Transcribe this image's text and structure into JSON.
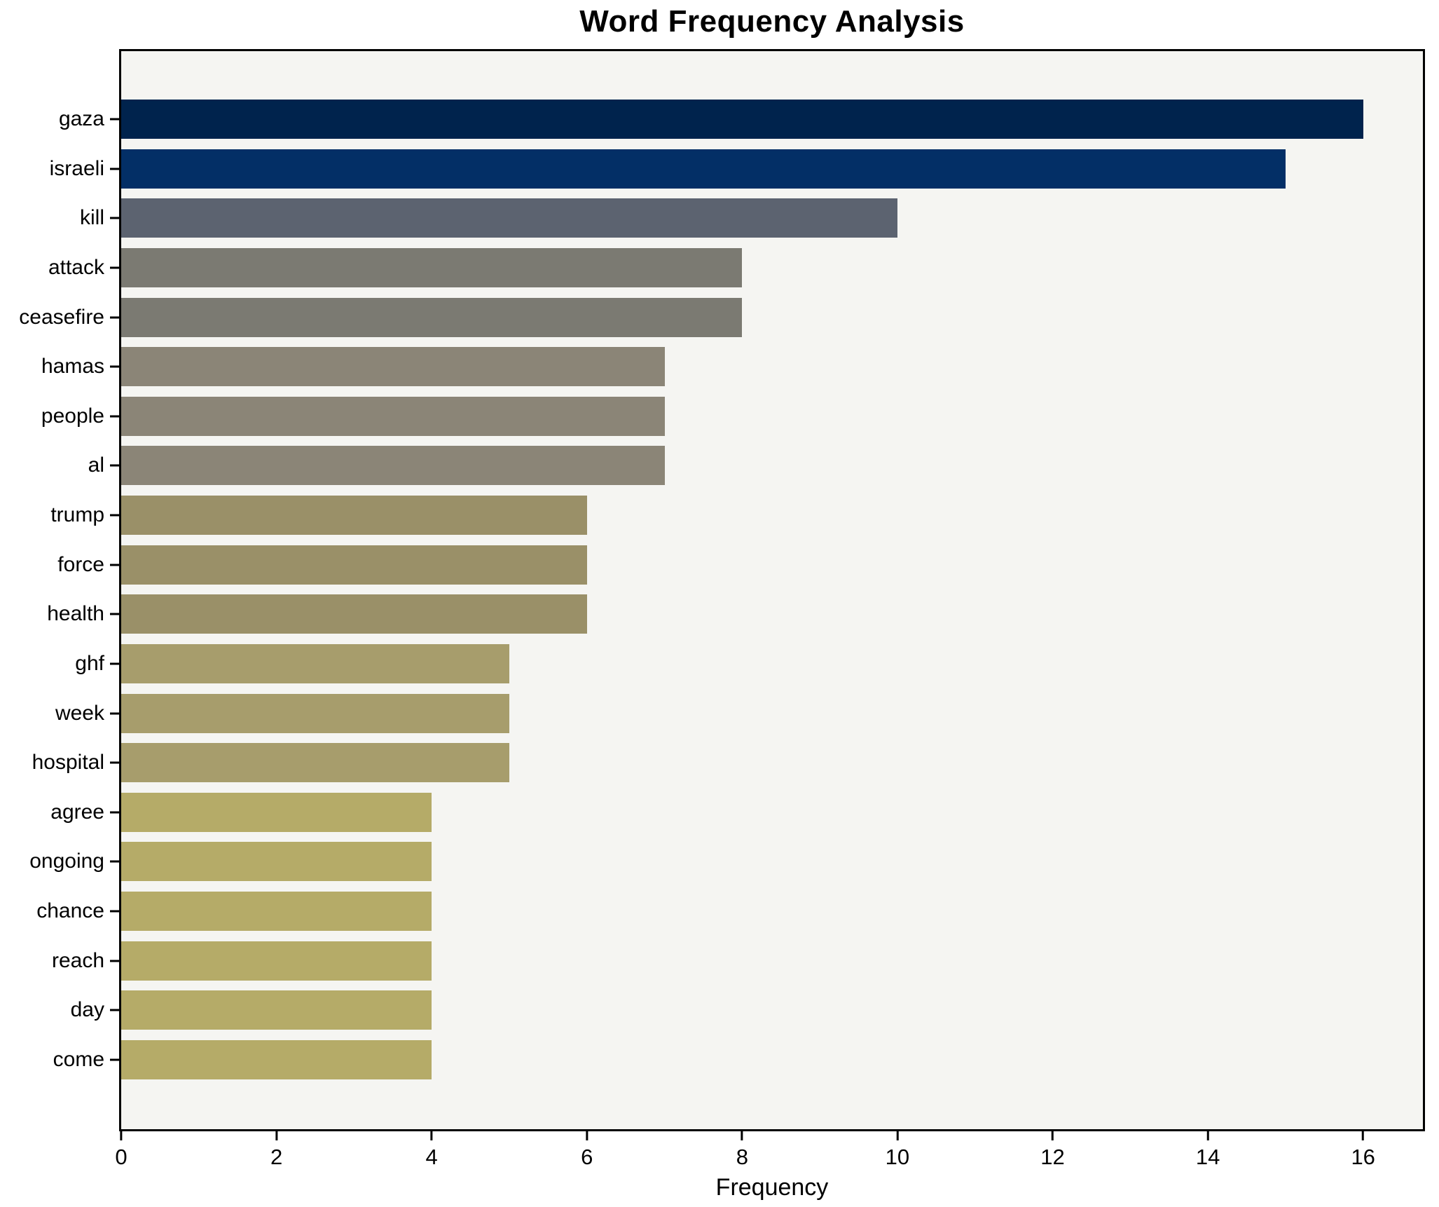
{
  "chart_data": {
    "type": "bar",
    "orientation": "horizontal",
    "title": "Word Frequency Analysis",
    "xlabel": "Frequency",
    "ylabel": "",
    "categories": [
      "gaza",
      "israeli",
      "kill",
      "attack",
      "ceasefire",
      "hamas",
      "people",
      "al",
      "trump",
      "force",
      "health",
      "ghf",
      "week",
      "hospital",
      "agree",
      "ongoing",
      "chance",
      "reach",
      "day",
      "come"
    ],
    "values": [
      16,
      15,
      10,
      8,
      8,
      7,
      7,
      7,
      6,
      6,
      6,
      5,
      5,
      5,
      4,
      4,
      4,
      4,
      4,
      4
    ],
    "bar_colors": [
      "#00234d",
      "#032f66",
      "#5c6370",
      "#7b7a72",
      "#7b7a72",
      "#8b8577",
      "#8b8577",
      "#8b8577",
      "#9a9068",
      "#9a9068",
      "#9a9068",
      "#a79d6c",
      "#a79d6c",
      "#a79d6c",
      "#b5ab68",
      "#b5ab68",
      "#b5ab68",
      "#b5ab68",
      "#b5ab68",
      "#b5ab68"
    ],
    "xlim": [
      0,
      16.77
    ],
    "xticks": [
      0,
      2,
      4,
      6,
      8,
      10,
      12,
      14,
      16
    ],
    "grid": false,
    "legend": false,
    "plot_background": "#f5f5f2",
    "figure_background": "#ffffff",
    "spine_color": "#000000",
    "text_color": "#000000"
  }
}
